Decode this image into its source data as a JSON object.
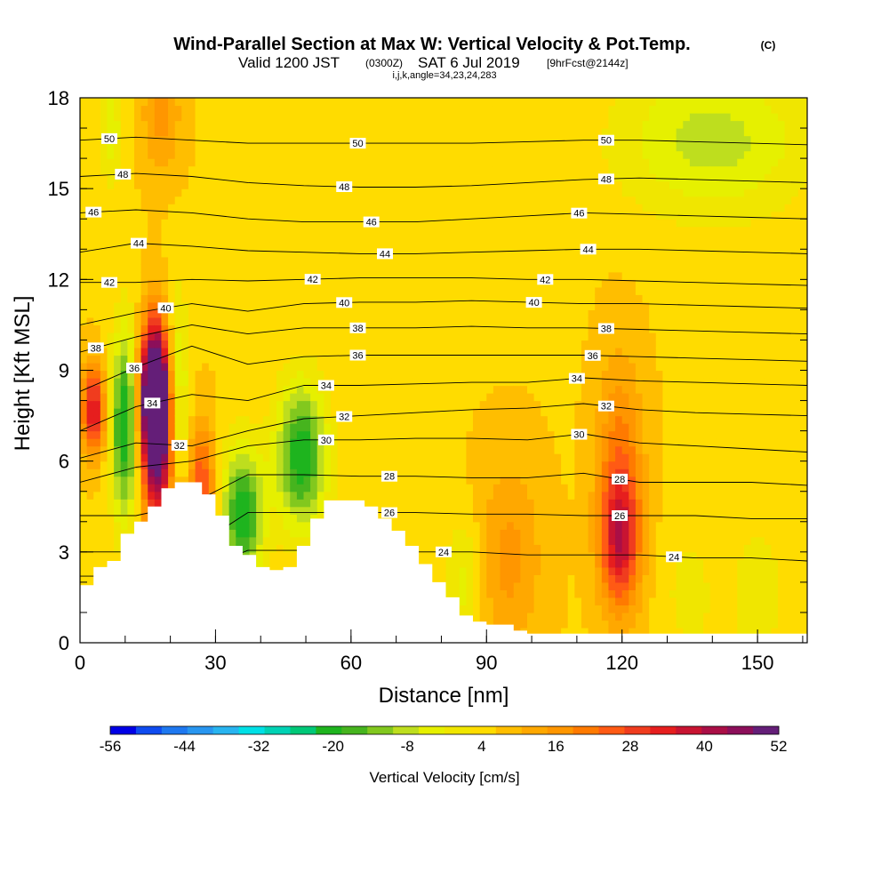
{
  "chart_data": {
    "type": "heatmap",
    "title": "Wind-Parallel Section at Max W: Vertical Velocity & Pot.Temp.",
    "title_unit": "(C)",
    "subtitle_prefix": "Valid 1200 JST",
    "subtitle_utc": "(0300Z)",
    "subtitle_date": "SAT 6 Jul 2019",
    "subtitle_fcst": "[9hrFcst@2144z]",
    "subtitle2": "i,j,k,angle=34,23,24,283",
    "xlabel": "Distance [nm]",
    "ylabel": "Height [Kft MSL]",
    "xlim": [
      0,
      161
    ],
    "ylim": [
      0,
      18
    ],
    "x_ticks": [
      0,
      30,
      60,
      90,
      120,
      150
    ],
    "y_ticks": [
      0,
      3,
      6,
      9,
      12,
      15,
      18
    ],
    "colorbar": {
      "label": "Vertical Velocity [cm/s]",
      "tick_labels": [
        "-56",
        "-44",
        "-32",
        "-20",
        "-8",
        "4",
        "16",
        "28",
        "40",
        "52"
      ],
      "tick_values": [
        -56,
        -44,
        -32,
        -20,
        -8,
        4,
        16,
        28,
        40,
        52
      ],
      "colors": [
        "#0000e6",
        "#0f4bf0",
        "#1e78f0",
        "#2896f0",
        "#28b4f0",
        "#00e0e6",
        "#00d2b4",
        "#00c878",
        "#1eb41e",
        "#46b41e",
        "#82c81e",
        "#bede1e",
        "#e6f000",
        "#f0e600",
        "#ffdc00",
        "#ffbe00",
        "#ffa800",
        "#ff9600",
        "#ff7a00",
        "#ff5a14",
        "#f03c1e",
        "#e61e1e",
        "#c81432",
        "#aa0f46",
        "#8c0f5a",
        "#641e78"
      ]
    },
    "theta_contours": [
      {
        "value": 24,
        "label": "24",
        "ys": [
          2.2,
          2.2,
          2.3,
          3.05,
          3.05,
          3.0,
          3.0,
          3.0,
          2.9,
          2.9,
          2.9,
          2.8,
          2.8,
          2.7
        ]
      },
      {
        "value": 26,
        "label": "26",
        "ys": [
          3.0,
          3.0,
          3.1,
          4.3,
          4.3,
          4.3,
          4.3,
          4.25,
          4.25,
          4.2,
          4.2,
          4.2,
          4.1,
          4.1
        ]
      },
      {
        "value": 28,
        "label": "28",
        "ys": [
          4.2,
          4.2,
          4.6,
          5.55,
          5.55,
          5.5,
          5.5,
          5.45,
          5.45,
          5.6,
          5.3,
          5.3,
          5.3,
          5.2
        ]
      },
      {
        "value": 30,
        "label": "30",
        "ys": [
          5.3,
          5.8,
          6.0,
          6.5,
          6.7,
          6.7,
          6.75,
          6.75,
          6.7,
          6.9,
          6.6,
          6.5,
          6.4,
          6.3
        ]
      },
      {
        "value": 32,
        "label": "32",
        "ys": [
          6.1,
          6.6,
          6.5,
          7.0,
          7.4,
          7.5,
          7.6,
          7.7,
          7.75,
          7.9,
          7.7,
          7.6,
          7.55,
          7.5
        ]
      },
      {
        "value": 34,
        "label": "34",
        "ys": [
          7.0,
          7.8,
          8.2,
          8.0,
          8.5,
          8.5,
          8.55,
          8.6,
          8.6,
          8.75,
          8.65,
          8.6,
          8.55,
          8.5
        ]
      },
      {
        "value": 36,
        "label": "36",
        "ys": [
          8.3,
          9.1,
          9.8,
          9.2,
          9.45,
          9.5,
          9.5,
          9.5,
          9.5,
          9.5,
          9.45,
          9.4,
          9.35,
          9.3
        ]
      },
      {
        "value": 38,
        "label": "38",
        "ys": [
          9.6,
          10.1,
          10.5,
          10.2,
          10.4,
          10.4,
          10.4,
          10.45,
          10.4,
          10.4,
          10.35,
          10.3,
          10.25,
          10.2
        ]
      },
      {
        "value": 40,
        "label": "40",
        "ys": [
          10.5,
          10.9,
          11.2,
          10.95,
          11.2,
          11.25,
          11.25,
          11.3,
          11.25,
          11.2,
          11.2,
          11.15,
          11.1,
          11.05
        ]
      },
      {
        "value": 42,
        "label": "42",
        "ys": [
          11.9,
          11.9,
          12.0,
          11.95,
          12.0,
          12.05,
          12.05,
          12.05,
          12.0,
          12.0,
          11.95,
          11.9,
          11.85,
          11.8
        ]
      },
      {
        "value": 44,
        "label": "44",
        "ys": [
          12.9,
          13.2,
          13.1,
          12.95,
          12.9,
          12.85,
          12.85,
          12.9,
          12.95,
          13.0,
          13.0,
          12.95,
          12.9,
          12.85
        ]
      },
      {
        "value": 46,
        "label": "46",
        "ys": [
          14.2,
          14.3,
          14.2,
          14.0,
          13.9,
          13.9,
          13.9,
          14.0,
          14.1,
          14.2,
          14.15,
          14.1,
          14.05,
          14.0
        ]
      },
      {
        "value": 48,
        "label": "48",
        "ys": [
          15.4,
          15.5,
          15.4,
          15.2,
          15.1,
          15.05,
          15.05,
          15.1,
          15.2,
          15.3,
          15.35,
          15.3,
          15.25,
          15.2
        ]
      },
      {
        "value": 50,
        "label": "50",
        "ys": [
          16.6,
          16.7,
          16.6,
          16.5,
          16.5,
          16.5,
          16.5,
          16.5,
          16.55,
          16.6,
          16.6,
          16.55,
          16.5,
          16.45
        ]
      }
    ],
    "contour_label_positions": [
      {
        "value": 50,
        "x": [
          6.5,
          61.5,
          116.5
        ]
      },
      {
        "value": 48,
        "x": [
          9.5,
          58.5,
          116.5
        ]
      },
      {
        "value": 46,
        "x": [
          3.0,
          64.5,
          110.5
        ]
      },
      {
        "value": 44,
        "x": [
          13.0,
          67.5,
          112.5
        ]
      },
      {
        "value": 42,
        "x": [
          6.5,
          51.5,
          103.0
        ]
      },
      {
        "value": 40,
        "x": [
          19.0,
          58.5,
          100.5
        ]
      },
      {
        "value": 38,
        "x": [
          3.5,
          61.5,
          116.5
        ]
      },
      {
        "value": 36,
        "x": [
          12.0,
          61.5,
          113.5
        ]
      },
      {
        "value": 34,
        "x": [
          16.0,
          54.5,
          110.0
        ]
      },
      {
        "value": 32,
        "x": [
          22.0,
          58.5,
          116.5
        ]
      },
      {
        "value": 30,
        "x": [
          54.5,
          110.5
        ]
      },
      {
        "value": 28,
        "x": [
          68.5,
          119.5
        ]
      },
      {
        "value": 26,
        "x": [
          68.5,
          119.5
        ]
      },
      {
        "value": 24,
        "x": [
          80.5,
          131.5
        ]
      }
    ],
    "terrain": {
      "x": [
        0,
        3,
        6,
        9,
        12,
        15,
        18,
        21,
        24,
        27,
        30,
        33,
        36,
        39,
        42,
        45,
        48,
        51,
        54,
        57,
        60,
        63,
        66,
        69,
        72,
        75,
        78,
        81,
        84,
        87,
        90,
        93,
        96,
        99,
        102,
        105,
        108,
        111,
        114,
        117,
        120,
        123,
        126,
        129,
        132,
        135,
        138,
        141,
        144,
        147,
        150,
        153,
        156,
        159,
        161
      ],
      "h_kft": [
        1.9,
        2.5,
        2.7,
        3.6,
        4.0,
        4.5,
        5.1,
        5.3,
        5.3,
        4.9,
        4.2,
        3.2,
        2.9,
        2.5,
        2.4,
        2.5,
        3.2,
        4.1,
        4.7,
        4.7,
        4.7,
        4.5,
        4.1,
        3.7,
        3.2,
        2.6,
        2.0,
        1.5,
        0.9,
        0.7,
        0.6,
        0.6,
        0.4,
        0.3,
        0.3,
        0.3,
        0.3,
        0.3,
        0.3,
        0.3,
        0.3,
        0.3,
        0.3,
        0.3,
        0.3,
        0.3,
        0.3,
        0.3,
        0.3,
        0.3,
        0.3,
        0.3,
        0.3,
        0.3,
        0.3
      ]
    },
    "w_features": [
      {
        "x": 16.5,
        "z": 8.2,
        "sx": 2.2,
        "sz": 1.6,
        "amp": 62
      },
      {
        "x": 17.5,
        "z": 6.3,
        "sx": 2.8,
        "sz": 2.2,
        "amp": 30
      },
      {
        "x": 3.0,
        "z": 7.7,
        "sx": 1.8,
        "sz": 1.0,
        "amp": 30
      },
      {
        "x": 10.0,
        "z": 7.2,
        "sx": 2.2,
        "sz": 2.2,
        "amp": -30
      },
      {
        "x": 21.5,
        "z": 8.0,
        "sx": 1.8,
        "sz": 2.4,
        "amp": -18
      },
      {
        "x": 27.0,
        "z": 5.0,
        "sx": 2.0,
        "sz": 1.5,
        "amp": 22
      },
      {
        "x": 36.0,
        "z": 4.2,
        "sx": 3.2,
        "sz": 1.6,
        "amp": -28
      },
      {
        "x": 49.0,
        "z": 6.2,
        "sx": 4.0,
        "sz": 1.7,
        "amp": -28
      },
      {
        "x": 119.5,
        "z": 3.3,
        "sx": 3.0,
        "sz": 1.5,
        "amp": 26
      },
      {
        "x": 119.5,
        "z": 5.8,
        "sx": 3.5,
        "sz": 2.5,
        "amp": 15
      },
      {
        "x": 95.0,
        "z": 2.8,
        "sx": 5.0,
        "sz": 2.2,
        "amp": 10
      },
      {
        "x": 140.0,
        "z": 16.6,
        "sx": 15.0,
        "sz": 1.8,
        "amp": -14
      },
      {
        "x": 18.0,
        "z": 17.5,
        "sx": 3.0,
        "sz": 1.4,
        "amp": 10
      },
      {
        "x": 7.0,
        "z": 17.0,
        "sx": 2.0,
        "sz": 1.4,
        "amp": -10
      },
      {
        "x": 85.0,
        "z": 2.0,
        "sx": 3.0,
        "sz": 1.5,
        "amp": -10
      },
      {
        "x": 150.0,
        "z": 1.6,
        "sx": 4.0,
        "sz": 1.6,
        "amp": -8
      },
      {
        "x": 135.0,
        "z": 1.6,
        "sx": 4.0,
        "sz": 1.6,
        "amp": -6
      }
    ],
    "w_background": 6,
    "grid": false
  }
}
